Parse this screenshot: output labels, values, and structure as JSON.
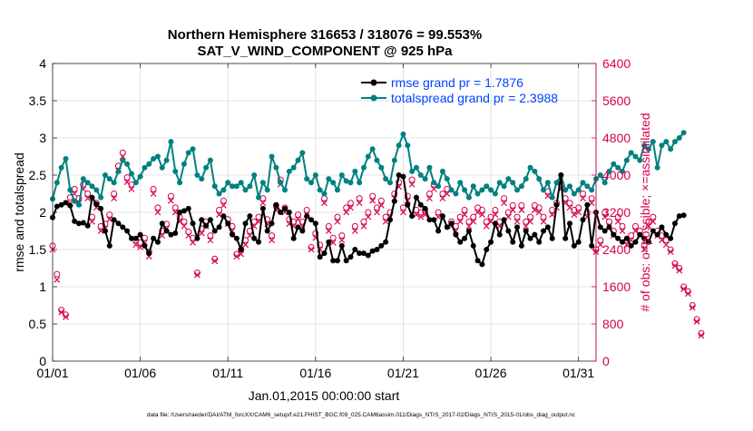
{
  "chart_data": {
    "type": "line",
    "title": "Northern Hemisphere 316653 / 318076 = 99.553%",
    "subtitle": "SAT_V_WIND_COMPONENT @ 925 hPa",
    "xlabel": "Jan.01,2015 00:00:00 start",
    "ylabel": "rmse and totalspread",
    "y2label": "# of obs: o=possible; ×=assimilated",
    "footer": "data file: /Users/raeder/DAI/ATM_forcXX/CAM6_setup/f.e21.FHIST_BGC.f09_025.CAM6assim.011/Diags_NTrS_2017-02/Diags_NTrS_2015-01/obs_diag_output.nc",
    "xlim": [
      1,
      32
    ],
    "ylim": [
      0,
      4
    ],
    "y2lim": [
      0,
      6400
    ],
    "x_ticks": [
      1,
      6,
      11,
      16,
      21,
      26,
      31
    ],
    "x_ticklabels": [
      "01/01",
      "01/06",
      "01/11",
      "01/16",
      "01/21",
      "01/26",
      "01/31"
    ],
    "y_ticklabels": [
      "0",
      "0.5",
      "1",
      "1.5",
      "2",
      "2.5",
      "3",
      "3.5",
      "4"
    ],
    "y2_ticklabels": [
      "0",
      "800",
      "1600",
      "2400",
      "3200",
      "4000",
      "4800",
      "5600",
      "6400"
    ],
    "grid": true,
    "legend_position": "top-right",
    "colors": {
      "rmse": "#000000",
      "totalspread": "#008080",
      "obs": "#d6004f",
      "legend_text": "#0044ff"
    },
    "x_start": 1.0,
    "x_step": 0.25,
    "series": [
      {
        "name": "rmse grand pr = 1.7876",
        "axis": "left",
        "values": [
          1.93,
          2.08,
          2.1,
          2.13,
          2.09,
          1.88,
          1.85,
          1.86,
          1.82,
          2.2,
          2.11,
          2.05,
          1.75,
          1.55,
          1.9,
          1.85,
          1.8,
          1.75,
          1.65,
          1.65,
          1.7,
          1.55,
          1.45,
          1.65,
          1.6,
          1.85,
          1.75,
          1.7,
          1.72,
          2.0,
          2.02,
          2.05,
          1.85,
          1.65,
          1.9,
          1.82,
          1.9,
          1.75,
          1.8,
          1.95,
          1.85,
          1.7,
          1.65,
          1.5,
          1.85,
          1.95,
          1.65,
          1.6,
          2.05,
          1.75,
          1.85,
          2.1,
          2.0,
          2.05,
          2.0,
          1.65,
          1.8,
          1.75,
          1.95,
          1.9,
          1.85,
          1.4,
          1.45,
          1.6,
          1.35,
          1.35,
          1.55,
          1.35,
          1.4,
          1.5,
          1.45,
          1.45,
          1.42,
          1.48,
          1.5,
          1.55,
          1.6,
          1.9,
          2.15,
          2.5,
          2.48,
          2.1,
          1.95,
          2.2,
          2.1,
          2.05,
          1.9,
          1.9,
          1.75,
          1.95,
          1.8,
          1.85,
          1.7,
          1.6,
          1.65,
          1.75,
          1.55,
          1.35,
          1.3,
          1.5,
          1.6,
          1.85,
          1.7,
          1.9,
          1.75,
          1.6,
          1.8,
          1.55,
          1.75,
          1.65,
          1.7,
          1.6,
          1.75,
          1.8,
          1.65,
          2.1,
          2.5,
          1.65,
          1.85,
          1.55,
          1.6,
          1.9,
          2.1,
          1.55,
          2.0,
          1.8,
          1.75,
          1.8,
          1.7,
          1.65,
          1.6,
          1.65,
          1.55,
          1.6,
          1.7,
          1.65,
          1.6,
          1.75,
          1.7,
          1.8,
          1.7,
          1.65,
          1.85,
          1.95,
          1.96
        ]
      },
      {
        "name": "totalspread grand pr = 2.3988",
        "axis": "left",
        "values": [
          2.18,
          2.4,
          2.6,
          2.72,
          2.3,
          2.15,
          2.1,
          2.45,
          2.4,
          2.35,
          2.3,
          2.2,
          2.5,
          2.45,
          2.4,
          2.55,
          2.7,
          2.65,
          2.52,
          2.4,
          2.48,
          2.6,
          2.65,
          2.72,
          2.75,
          2.6,
          2.7,
          2.95,
          2.55,
          2.4,
          2.65,
          2.8,
          2.85,
          2.5,
          2.45,
          2.6,
          2.7,
          2.35,
          2.25,
          2.3,
          2.4,
          2.35,
          2.35,
          2.4,
          2.3,
          2.35,
          2.5,
          2.2,
          2.4,
          2.3,
          2.75,
          2.6,
          2.4,
          2.3,
          2.55,
          2.6,
          2.7,
          2.8,
          2.45,
          2.4,
          2.5,
          2.3,
          2.25,
          2.45,
          2.4,
          2.3,
          2.5,
          2.42,
          2.4,
          2.55,
          2.4,
          2.6,
          2.75,
          2.85,
          2.7,
          2.6,
          2.45,
          2.4,
          2.7,
          2.9,
          3.05,
          2.9,
          2.55,
          2.6,
          2.5,
          2.45,
          2.6,
          2.4,
          2.35,
          2.55,
          2.45,
          2.3,
          2.25,
          2.4,
          2.3,
          2.2,
          2.35,
          2.25,
          2.3,
          2.35,
          2.3,
          2.25,
          2.4,
          2.35,
          2.45,
          2.4,
          2.3,
          2.35,
          2.45,
          2.6,
          2.55,
          2.45,
          2.3,
          2.4,
          2.2,
          2.4,
          2.5,
          2.3,
          2.35,
          2.25,
          2.3,
          2.4,
          2.35,
          2.3,
          2.45,
          2.5,
          2.4,
          2.55,
          2.65,
          2.6,
          2.55,
          2.7,
          2.8,
          2.75,
          2.7,
          2.9,
          2.85,
          2.95,
          2.6,
          2.9,
          2.95,
          2.85,
          2.95,
          3.0,
          3.07
        ]
      },
      {
        "name": "possible",
        "axis": "right",
        "values": [
          2480,
          1870,
          1100,
          1000,
          3520,
          3700,
          3500,
          3800,
          3600,
          3100,
          3400,
          2900,
          2950,
          3150,
          3600,
          4200,
          4480,
          3950,
          3800,
          2600,
          2550,
          2650,
          2350,
          3700,
          3300,
          2800,
          2950,
          3550,
          3300,
          3100,
          3000,
          2780,
          2650,
          1900,
          2850,
          3000,
          2700,
          2200,
          3250,
          3450,
          3050,
          2900,
          2300,
          2400,
          2600,
          2800,
          3000,
          3100,
          3500,
          3050,
          2700,
          3350,
          3900,
          3300,
          3050,
          3000,
          3150,
          3000,
          3250,
          2450,
          2750,
          2500,
          3500,
          2900,
          2650,
          3100,
          2700,
          3300,
          3400,
          2900,
          3500,
          3000,
          3200,
          3550,
          3300,
          3450,
          3100,
          3200,
          3600,
          3850,
          3300,
          3550,
          3900,
          3250,
          3200,
          3250,
          3600,
          3800,
          3200,
          3600,
          3700,
          3000,
          2900,
          3100,
          3250,
          3000,
          3100,
          3300,
          3250,
          3000,
          3100,
          3250,
          3000,
          3500,
          3200,
          3350,
          3100,
          3350,
          3000,
          3100,
          3350,
          3300,
          3100,
          3650,
          3250,
          3400,
          3800,
          3500,
          3400,
          3250,
          3300,
          3600,
          3200,
          3500,
          2400,
          2600,
          3200,
          3000,
          2800,
          3100,
          2900,
          2600,
          2700,
          2900,
          2800,
          2500,
          3000,
          3100,
          2800,
          2700,
          2600,
          2400,
          2100,
          2000,
          1600,
          1500,
          1200,
          900,
          600
        ]
      },
      {
        "name": "assimilated",
        "axis": "right",
        "values": [
          2400,
          1750,
          1050,
          950,
          3400,
          3600,
          3400,
          3700,
          3500,
          3000,
          3300,
          2800,
          2850,
          3050,
          3500,
          4100,
          4400,
          3850,
          3700,
          2500,
          2450,
          2550,
          2250,
          3600,
          3200,
          2700,
          2850,
          3450,
          3200,
          3000,
          2900,
          2700,
          2550,
          1850,
          2750,
          2900,
          2600,
          2150,
          3150,
          3350,
          2950,
          2800,
          2250,
          2300,
          2500,
          2700,
          2900,
          3000,
          3400,
          2950,
          2600,
          3250,
          3800,
          3200,
          2950,
          2900,
          3050,
          2900,
          3150,
          2400,
          2650,
          2400,
          3400,
          2800,
          2550,
          3000,
          2600,
          3200,
          3300,
          2800,
          3400,
          2900,
          3100,
          3450,
          3200,
          3350,
          3000,
          3100,
          3500,
          3750,
          3200,
          3450,
          3800,
          3150,
          3100,
          3150,
          3500,
          3700,
          3100,
          3500,
          3600,
          2900,
          2800,
          3000,
          3150,
          2900,
          3000,
          3200,
          3150,
          2900,
          3000,
          3150,
          2900,
          3400,
          3100,
          3250,
          3000,
          3250,
          2900,
          3000,
          3250,
          3200,
          3000,
          3550,
          3150,
          3300,
          3700,
          3400,
          3300,
          3150,
          3200,
          3500,
          3100,
          3400,
          2350,
          2500,
          3100,
          2900,
          2700,
          3000,
          2800,
          2500,
          2600,
          2800,
          2700,
          2400,
          2900,
          3000,
          2700,
          2600,
          2500,
          2350,
          2050,
          1950,
          1550,
          1450,
          1150,
          850,
          550
        ]
      }
    ]
  }
}
